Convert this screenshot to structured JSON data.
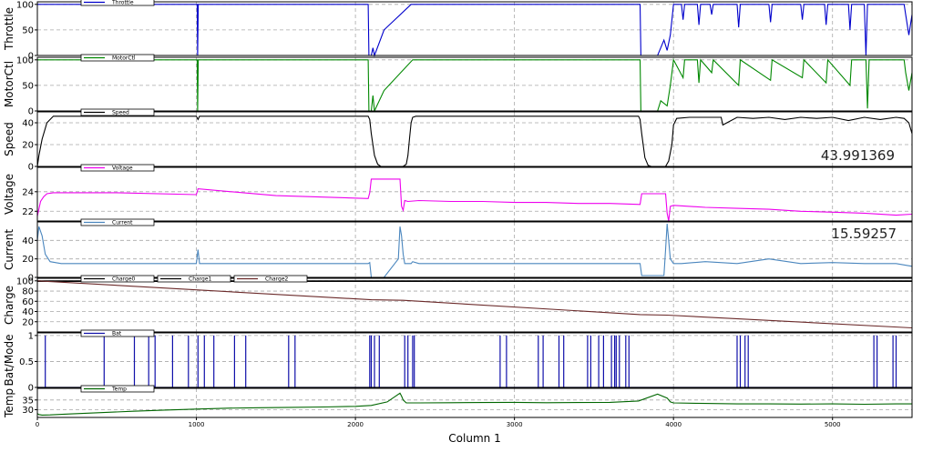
{
  "window": {
    "background": "#ffffff"
  },
  "x_axis": {
    "label": "Column 1",
    "ticks": [
      0,
      1000,
      2000,
      3000,
      4000,
      5000
    ],
    "range": [
      0,
      5500
    ]
  },
  "readouts": [
    {
      "panel": "speed",
      "text": "43.991369"
    },
    {
      "panel": "current",
      "text": "15.59257"
    }
  ],
  "chart_data": [
    {
      "id": "throttle",
      "type": "line",
      "ylabel": "Throttle",
      "ylim": [
        0,
        105
      ],
      "yticks": [
        0,
        50,
        100
      ],
      "grid": true,
      "legend_placement": "top-left",
      "series": [
        {
          "name": "Throttle",
          "color": "#0000cc",
          "x": [
            0,
            1005,
            1008,
            1012,
            2080,
            2085,
            2100,
            2110,
            2120,
            2180,
            2350,
            2360,
            2370,
            2380,
            2390,
            3790,
            3795,
            3800,
            3900,
            3920,
            3940,
            3960,
            3980,
            4000,
            4050,
            4060,
            4070,
            4150,
            4160,
            4170,
            4230,
            4240,
            4250,
            4400,
            4410,
            4420,
            4600,
            4610,
            4620,
            4800,
            4810,
            4820,
            4950,
            4960,
            4970,
            5100,
            5110,
            5120,
            5150,
            5200,
            5210,
            5220,
            5450,
            5460,
            5480,
            5500
          ],
          "y": [
            100,
            100,
            0,
            100,
            100,
            0,
            0,
            15,
            0,
            50,
            100,
            100,
            100,
            100,
            100,
            100,
            0,
            0,
            0,
            15,
            30,
            10,
            40,
            100,
            100,
            70,
            100,
            100,
            60,
            100,
            100,
            80,
            100,
            100,
            55,
            100,
            100,
            65,
            100,
            100,
            70,
            100,
            100,
            60,
            100,
            100,
            50,
            100,
            100,
            100,
            0,
            100,
            100,
            80,
            40,
            80
          ]
        }
      ]
    },
    {
      "id": "motorctl",
      "type": "line",
      "ylabel": "MotorCtl",
      "ylim": [
        0,
        105
      ],
      "yticks": [
        0,
        50,
        100
      ],
      "grid": true,
      "legend_placement": "top-left",
      "series": [
        {
          "name": "MotorCtl",
          "color": "#008800",
          "x": [
            0,
            1005,
            1008,
            1012,
            2080,
            2085,
            2100,
            2110,
            2120,
            2180,
            2360,
            3790,
            3795,
            3800,
            3900,
            3920,
            3960,
            3980,
            4000,
            4060,
            4070,
            4150,
            4160,
            4170,
            4240,
            4250,
            4410,
            4420,
            4610,
            4620,
            4810,
            4820,
            4960,
            4970,
            5110,
            5120,
            5210,
            5220,
            5230,
            5450,
            5460,
            5480,
            5500
          ],
          "y": [
            100,
            100,
            0,
            100,
            100,
            0,
            0,
            30,
            0,
            40,
            100,
            100,
            0,
            0,
            0,
            20,
            10,
            50,
            100,
            65,
            100,
            100,
            55,
            100,
            75,
            100,
            50,
            100,
            60,
            100,
            65,
            100,
            55,
            100,
            50,
            100,
            100,
            5,
            100,
            100,
            75,
            40,
            75
          ]
        }
      ]
    },
    {
      "id": "speed",
      "type": "line",
      "ylabel": "Speed",
      "ylim": [
        0,
        50
      ],
      "yticks": [
        0,
        20,
        40
      ],
      "grid": true,
      "legend_placement": "top-left",
      "series": [
        {
          "name": "Speed",
          "color": "#000000",
          "x": [
            0,
            10,
            30,
            60,
            100,
            1000,
            1010,
            1020,
            2080,
            2090,
            2100,
            2120,
            2140,
            2160,
            2300,
            2320,
            2330,
            2340,
            2350,
            2360,
            2380,
            3780,
            3790,
            3800,
            3820,
            3840,
            3860,
            3950,
            3970,
            3990,
            4000,
            4020,
            4100,
            4300,
            4310,
            4400,
            4500,
            4600,
            4700,
            4800,
            4900,
            5000,
            5100,
            5200,
            5300,
            5400,
            5450,
            5480,
            5500
          ],
          "y": [
            0,
            10,
            25,
            40,
            46,
            46,
            43,
            46,
            46,
            43,
            30,
            10,
            2,
            0,
            0,
            2,
            10,
            25,
            40,
            45,
            46,
            46,
            43,
            30,
            8,
            1,
            0,
            0,
            5,
            20,
            38,
            44,
            45,
            45,
            38,
            45,
            44,
            45,
            43,
            45,
            44,
            45,
            42,
            45,
            43,
            45,
            44,
            40,
            30
          ]
        }
      ]
    },
    {
      "id": "voltage",
      "type": "line",
      "ylabel": "Voltage",
      "ylim": [
        21,
        26.5
      ],
      "yticks": [
        22,
        24
      ],
      "grid": true,
      "legend_placement": "top-left",
      "series": [
        {
          "name": "Voltage",
          "color": "#ee00ee",
          "x": [
            0,
            20,
            40,
            60,
            100,
            500,
            1000,
            1010,
            1500,
            2080,
            2090,
            2100,
            2200,
            2280,
            2290,
            2300,
            2310,
            2330,
            2400,
            2600,
            2800,
            3000,
            3200,
            3400,
            3600,
            3790,
            3800,
            3900,
            3950,
            3960,
            3970,
            3980,
            4000,
            4200,
            4400,
            4600,
            4800,
            5000,
            5200,
            5400,
            5500
          ],
          "y": [
            21.5,
            23,
            23.5,
            23.8,
            23.9,
            23.9,
            23.7,
            24.3,
            23.6,
            23.3,
            23.9,
            25.3,
            25.3,
            25.3,
            22.5,
            22.1,
            23.1,
            23.0,
            23.1,
            23.0,
            23.0,
            22.9,
            22.9,
            22.8,
            22.8,
            22.7,
            23.8,
            23.8,
            23.8,
            21.8,
            20.5,
            22.5,
            22.6,
            22.4,
            22.3,
            22.2,
            22.0,
            21.9,
            21.8,
            21.6,
            21.7
          ]
        }
      ]
    },
    {
      "id": "current",
      "type": "line",
      "ylabel": "Current",
      "ylim": [
        0,
        60
      ],
      "yticks": [
        0,
        20,
        40
      ],
      "grid": true,
      "legend_placement": "top-left",
      "series": [
        {
          "name": "Current",
          "color": "#4a86be",
          "x": [
            0,
            10,
            30,
            50,
            80,
            150,
            500,
            1000,
            1010,
            1020,
            1500,
            2080,
            2090,
            2100,
            2120,
            2180,
            2270,
            2280,
            2290,
            2300,
            2310,
            2350,
            2360,
            2400,
            2800,
            3000,
            3400,
            3790,
            3800,
            3900,
            3940,
            3950,
            3960,
            3970,
            3980,
            4000,
            4050,
            4200,
            4400,
            4600,
            4800,
            5000,
            5200,
            5400,
            5500
          ],
          "y": [
            40,
            55,
            45,
            25,
            17,
            15,
            15,
            15,
            30,
            15,
            15,
            15,
            16,
            0,
            0,
            0,
            20,
            55,
            45,
            25,
            15,
            15,
            17,
            15,
            15,
            15,
            15,
            15,
            2,
            2,
            2,
            30,
            58,
            40,
            20,
            15,
            15,
            17,
            15,
            20,
            15,
            16,
            15,
            15,
            12
          ]
        }
      ]
    },
    {
      "id": "charge",
      "type": "line",
      "ylabel": "Charge",
      "ylim": [
        0,
        105
      ],
      "yticks": [
        20,
        40,
        60,
        80,
        100
      ],
      "grid": true,
      "legend_placement": "top-left",
      "series": [
        {
          "name": "Charge0",
          "color": "#000000",
          "x": [
            0,
            5500
          ],
          "y": [
            100,
            100
          ]
        },
        {
          "name": "Charge1",
          "color": "#000000",
          "x": [
            0,
            5500
          ],
          "y": [
            99,
            99
          ]
        },
        {
          "name": "Charge2",
          "color": "#6b2a2a",
          "x": [
            0,
            2100,
            2300,
            3790,
            3960,
            5500
          ],
          "y": [
            100,
            63,
            62,
            34,
            33,
            8
          ]
        }
      ]
    },
    {
      "id": "batmode",
      "type": "line",
      "ylabel": "Bat/Mode",
      "ylim": [
        0,
        1.05
      ],
      "yticks": [
        0,
        0.5,
        1
      ],
      "grid": true,
      "legend_placement": "top-left",
      "series": [
        {
          "name": "Bat",
          "color": "#1010aa",
          "pulses": [
            50,
            420,
            610,
            700,
            740,
            850,
            950,
            1010,
            1050,
            1110,
            1240,
            1310,
            1580,
            1620,
            2090,
            2100,
            2120,
            2150,
            2310,
            2330,
            2360,
            2370,
            2910,
            2950,
            3150,
            3180,
            3280,
            3310,
            3460,
            3480,
            3530,
            3560,
            3610,
            3630,
            3640,
            3660,
            3700,
            3720,
            4400,
            4420,
            4450,
            4470,
            5260,
            5280,
            5380,
            5400
          ],
          "x": [
            0,
            5500
          ],
          "y": [
            0,
            0
          ]
        }
      ]
    },
    {
      "id": "temp",
      "type": "line",
      "ylabel": "Temp",
      "ylim": [
        26,
        41
      ],
      "yticks": [
        30,
        35
      ],
      "grid": true,
      "legend_placement": "top-left",
      "series": [
        {
          "name": "Temp",
          "color": "#006600",
          "x": [
            0,
            10,
            30,
            80,
            200,
            400,
            600,
            800,
            1000,
            1200,
            1400,
            1600,
            1800,
            2000,
            2100,
            2200,
            2280,
            2290,
            2300,
            2320,
            2400,
            2600,
            2800,
            3000,
            3200,
            3400,
            3600,
            3780,
            3900,
            3960,
            3980,
            4000,
            4200,
            4400,
            4600,
            4800,
            5000,
            5200,
            5400,
            5500
          ],
          "y": [
            28,
            27.5,
            27.2,
            27.3,
            27.8,
            28.5,
            29.2,
            29.8,
            30.3,
            30.8,
            31,
            31.2,
            31.4,
            31.7,
            32.2,
            34,
            38.5,
            37,
            35,
            33.5,
            33.5,
            33.6,
            33.7,
            33.8,
            33.6,
            33.7,
            33.8,
            34.5,
            38,
            36,
            34,
            33.5,
            33.2,
            33,
            33,
            32.9,
            33,
            32.8,
            33,
            33
          ]
        }
      ]
    }
  ]
}
